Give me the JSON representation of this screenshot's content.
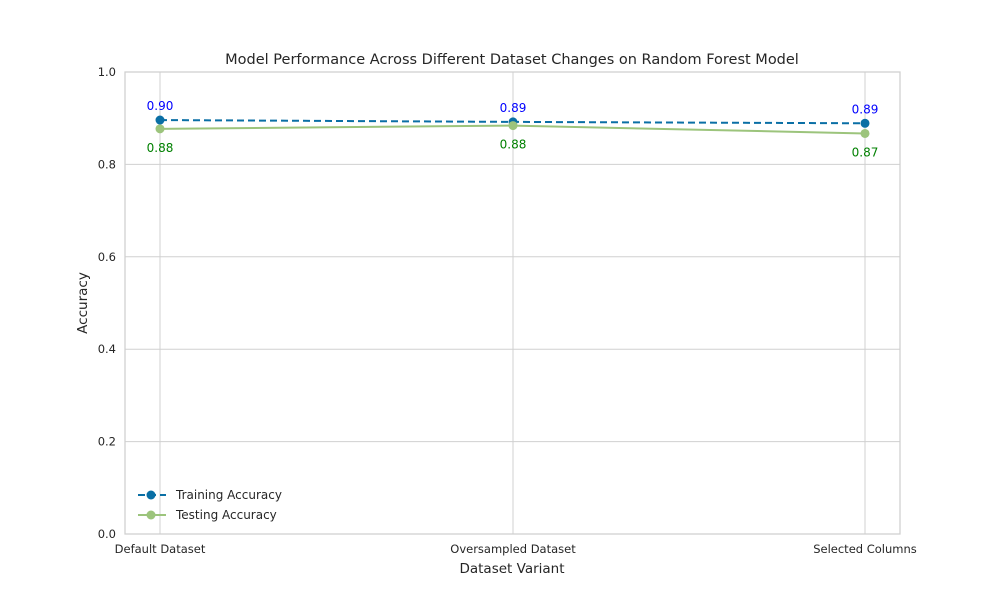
{
  "chart_data": {
    "type": "line",
    "title": "Model Performance Across Different Dataset Changes on Random Forest Model",
    "xlabel": "Dataset Variant",
    "ylabel": "Accuracy",
    "categories": [
      "Default Dataset",
      "Oversampled Dataset",
      "Selected Columns"
    ],
    "ylim": [
      0,
      1
    ],
    "yticks": [
      0.0,
      0.2,
      0.4,
      0.6,
      0.8,
      1.0
    ],
    "ytick_labels": [
      "0.0",
      "0.2",
      "0.4",
      "0.6",
      "0.8",
      "1.0"
    ],
    "grid": true,
    "legend_position": "lower-left",
    "series": [
      {
        "name": "Training Accuracy",
        "values": [
          0.896,
          0.892,
          0.889
        ],
        "labels": [
          "0.90",
          "0.89",
          "0.89"
        ],
        "color": "#0a6fa5",
        "label_color": "#0000ff",
        "line_style": "dashed",
        "marker": "circle",
        "label_position": "above"
      },
      {
        "name": "Testing Accuracy",
        "values": [
          0.877,
          0.884,
          0.867
        ],
        "labels": [
          "0.88",
          "0.88",
          "0.87"
        ],
        "color": "#9cc47c",
        "label_color": "#008000",
        "line_style": "solid",
        "marker": "circle",
        "label_position": "below"
      }
    ]
  }
}
